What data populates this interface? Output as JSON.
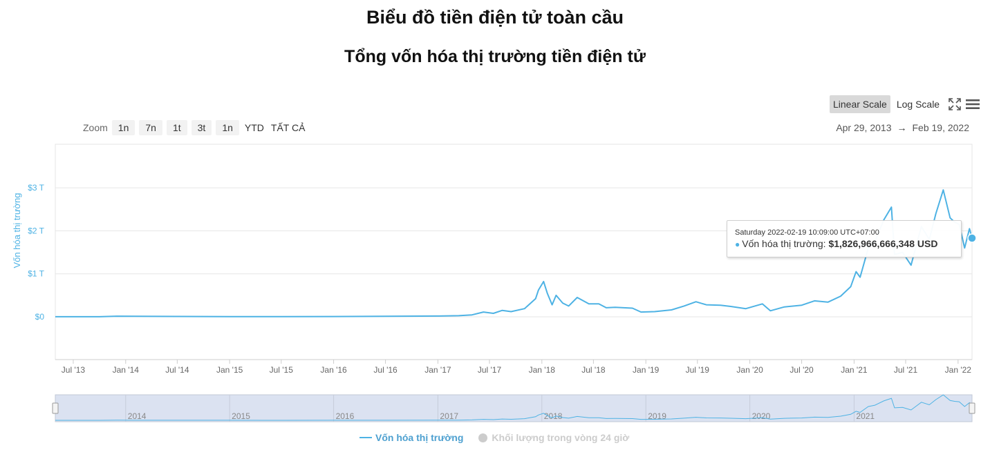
{
  "title": "Biểu đồ tiền điện tử toàn cầu",
  "subtitle": "Tổng vốn hóa thị trường tiền điện tử",
  "zoom": {
    "label": "Zoom",
    "buttons": [
      "1n",
      "7n",
      "1t",
      "3t",
      "1n",
      "YTD",
      "TẤT CẢ"
    ]
  },
  "scale": {
    "linear": "Linear Scale",
    "log": "Log Scale",
    "active": "linear"
  },
  "range": {
    "from": "Apr 29, 2013",
    "arrow": "→",
    "to": "Feb 19, 2022"
  },
  "tooltip": {
    "date": "Saturday 2022-02-19 10:09:00 UTC+07:00",
    "label": "Vốn hóa thị trường:",
    "value": "$1,826,966,666,348 USD"
  },
  "legend": [
    {
      "name": "Vốn hóa thị trường",
      "color": "#4db2e4",
      "active": true
    },
    {
      "name": "Khối lượng trong vòng 24 giờ",
      "color": "#cccccc",
      "active": false
    }
  ],
  "colors": {
    "series": "#4db2e4",
    "axis": "#4db2e4",
    "navigator_mask": "#dbe2f1"
  },
  "chart_data": {
    "type": "area",
    "ylabel": "Vốn hóa thị trường",
    "y_ticks": [
      {
        "value": 0,
        "label": "$0"
      },
      {
        "value": 1,
        "label": "$1 T"
      },
      {
        "value": 2,
        "label": "$2 T"
      },
      {
        "value": 3,
        "label": "$3 T"
      }
    ],
    "y_unit": "trillion USD",
    "x_ticks": [
      "Jul '13",
      "Jan '14",
      "Jul '14",
      "Jan '15",
      "Jul '15",
      "Jan '16",
      "Jul '16",
      "Jan '17",
      "Jul '17",
      "Jan '18",
      "Jul '18",
      "Jan '19",
      "Jul '19",
      "Jan '20",
      "Jul '20",
      "Jan '21",
      "Jul '21",
      "Jan '22"
    ],
    "navigator_years": [
      "2014",
      "2015",
      "2016",
      "2017",
      "2018",
      "2019",
      "2020",
      "2021"
    ],
    "x_range": [
      "2013-04-29",
      "2022-02-19"
    ],
    "series": [
      {
        "name": "Vốn hóa thị trường",
        "points": [
          [
            "2013-04-29",
            0.0015
          ],
          [
            "2013-10-01",
            0.002
          ],
          [
            "2013-12-01",
            0.014
          ],
          [
            "2014-02-01",
            0.011
          ],
          [
            "2014-07-01",
            0.008
          ],
          [
            "2015-01-01",
            0.005
          ],
          [
            "2015-07-01",
            0.004
          ],
          [
            "2016-01-01",
            0.007
          ],
          [
            "2016-07-01",
            0.011
          ],
          [
            "2017-01-01",
            0.018
          ],
          [
            "2017-03-15",
            0.025
          ],
          [
            "2017-05-01",
            0.045
          ],
          [
            "2017-06-10",
            0.11
          ],
          [
            "2017-07-15",
            0.08
          ],
          [
            "2017-08-15",
            0.15
          ],
          [
            "2017-09-15",
            0.12
          ],
          [
            "2017-11-01",
            0.19
          ],
          [
            "2017-12-10",
            0.42
          ],
          [
            "2017-12-20",
            0.62
          ],
          [
            "2018-01-07",
            0.82
          ],
          [
            "2018-01-20",
            0.55
          ],
          [
            "2018-02-06",
            0.28
          ],
          [
            "2018-02-20",
            0.5
          ],
          [
            "2018-03-15",
            0.32
          ],
          [
            "2018-04-05",
            0.25
          ],
          [
            "2018-05-05",
            0.45
          ],
          [
            "2018-06-15",
            0.3
          ],
          [
            "2018-07-20",
            0.3
          ],
          [
            "2018-08-15",
            0.21
          ],
          [
            "2018-09-15",
            0.22
          ],
          [
            "2018-11-15",
            0.2
          ],
          [
            "2018-12-15",
            0.11
          ],
          [
            "2019-02-01",
            0.12
          ],
          [
            "2019-04-01",
            0.16
          ],
          [
            "2019-05-15",
            0.25
          ],
          [
            "2019-06-26",
            0.35
          ],
          [
            "2019-08-01",
            0.28
          ],
          [
            "2019-09-20",
            0.27
          ],
          [
            "2019-10-26",
            0.24
          ],
          [
            "2019-12-18",
            0.19
          ],
          [
            "2020-02-14",
            0.3
          ],
          [
            "2020-03-13",
            0.14
          ],
          [
            "2020-05-01",
            0.23
          ],
          [
            "2020-07-01",
            0.27
          ],
          [
            "2020-08-15",
            0.37
          ],
          [
            "2020-10-01",
            0.34
          ],
          [
            "2020-11-15",
            0.48
          ],
          [
            "2020-12-20",
            0.7
          ],
          [
            "2021-01-08",
            1.05
          ],
          [
            "2021-01-22",
            0.92
          ],
          [
            "2021-02-20",
            1.6
          ],
          [
            "2021-03-15",
            1.75
          ],
          [
            "2021-04-15",
            2.25
          ],
          [
            "2021-05-12",
            2.55
          ],
          [
            "2021-05-23",
            1.45
          ],
          [
            "2021-06-20",
            1.5
          ],
          [
            "2021-07-20",
            1.2
          ],
          [
            "2021-08-25",
            2.1
          ],
          [
            "2021-09-22",
            1.8
          ],
          [
            "2021-10-15",
            2.4
          ],
          [
            "2021-11-10",
            2.95
          ],
          [
            "2021-12-04",
            2.3
          ],
          [
            "2021-12-20",
            2.2
          ],
          [
            "2022-01-05",
            2.15
          ],
          [
            "2022-01-24",
            1.6
          ],
          [
            "2022-02-10",
            2.05
          ],
          [
            "2022-02-19",
            1.83
          ]
        ]
      }
    ]
  }
}
